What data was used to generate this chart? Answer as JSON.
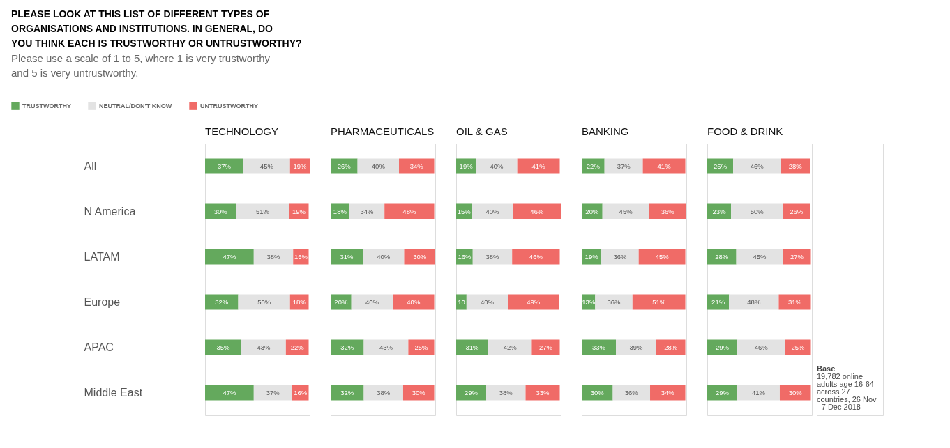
{
  "chart_data": [
    {
      "type": "other",
      "title": "PLEASE LOOK AT THIS LIST OF DIFFERENT TYPES OF ORGANISATIONS AND INSTITUTIONS. IN GENERAL, DO YOU THINK EACH IS TRUSTWORTHY OR UNTRUSTWORTHY?",
      "subtitle": "Please use a scale of 1 to 5, where 1 is very trustworthy and 5 is very untrustworthy."
    },
    {
      "type": "bar",
      "title": "TECHNOLOGY",
      "orientation": "horizontal",
      "stacked": true,
      "legend": "top left",
      "tick_labels": "y",
      "categories": [
        "All",
        "N America",
        "LATAM",
        "Europe",
        "APAC",
        "Middle East"
      ],
      "series": [
        {
          "name": "TRUSTWORTHY",
          "color": "#64a95d",
          "values": [
            37,
            30,
            47,
            32,
            35,
            47
          ],
          "value_labels": [
            "37%",
            "30%",
            "47%",
            "32%",
            "35%",
            "47%"
          ]
        },
        {
          "name": "NEUTRAL/DON'T KNOW",
          "color": "#e3e3e3",
          "values": [
            45,
            51,
            38,
            50,
            43,
            37
          ],
          "value_labels": [
            "45%",
            "51%",
            "38%",
            "50%",
            "43%",
            "37%"
          ]
        },
        {
          "name": "UNTRUSTWORTHY",
          "color": "#f06b67",
          "values": [
            19,
            19,
            15,
            18,
            22,
            16
          ],
          "value_labels": [
            "19%",
            "19%",
            "15%",
            "18%",
            "22%",
            "16%"
          ]
        }
      ]
    },
    {
      "type": "bar",
      "title": "PHARMACEUTICALS",
      "orientation": "horizontal",
      "stacked": true,
      "tick_labels": false,
      "categories": [
        "All",
        "N America",
        "LATAM",
        "Europe",
        "APAC",
        "Middle East"
      ],
      "series": [
        {
          "name": "TRUSTWORTHY",
          "color": "#64a95d",
          "values": [
            26,
            18,
            31,
            20,
            32,
            32
          ],
          "value_labels": [
            "26%",
            "18%",
            "31%",
            "20%",
            "32%",
            "32%"
          ]
        },
        {
          "name": "NEUTRAL/DON'T KNOW",
          "color": "#e3e3e3",
          "values": [
            40,
            34,
            40,
            40,
            43,
            38
          ],
          "value_labels": [
            "40%",
            "34%",
            "40%",
            "40%",
            "43%",
            "38%"
          ]
        },
        {
          "name": "UNTRUSTWORTHY",
          "color": "#f06b67",
          "values": [
            34,
            48,
            30,
            40,
            25,
            30
          ],
          "value_labels": [
            "34%",
            "48%",
            "30%",
            "40%",
            "25%",
            "30%"
          ]
        }
      ]
    },
    {
      "type": "bar",
      "title": "OIL & GAS",
      "orientation": "horizontal",
      "stacked": true,
      "tick_labels": false,
      "categories": [
        "All",
        "N America",
        "LATAM",
        "Europe",
        "APAC",
        "Middle East"
      ],
      "series": [
        {
          "name": "TRUSTWORTHY",
          "color": "#64a95d",
          "values": [
            19,
            15,
            16,
            10,
            31,
            29
          ],
          "value_labels": [
            "19%",
            "15%",
            "16%",
            "10",
            "31%",
            "29%"
          ]
        },
        {
          "name": "NEUTRAL/DON'T KNOW",
          "color": "#e3e3e3",
          "values": [
            40,
            40,
            38,
            40,
            42,
            38
          ],
          "value_labels": [
            "40%",
            "40%",
            "38%",
            "40%",
            "42%",
            "38%"
          ]
        },
        {
          "name": "UNTRUSTWORTHY",
          "color": "#f06b67",
          "values": [
            41,
            46,
            46,
            49,
            27,
            33
          ],
          "value_labels": [
            "41%",
            "46%",
            "46%",
            "49%",
            "27%",
            "33%"
          ]
        }
      ]
    },
    {
      "type": "bar",
      "title": "BANKING",
      "orientation": "horizontal",
      "stacked": true,
      "tick_labels": false,
      "categories": [
        "All",
        "N America",
        "LATAM",
        "Europe",
        "APAC",
        "Middle East"
      ],
      "series": [
        {
          "name": "TRUSTWORTHY",
          "color": "#64a95d",
          "values": [
            22,
            20,
            19,
            13,
            33,
            30
          ],
          "value_labels": [
            "22%",
            "20%",
            "19%",
            "13%",
            "33%",
            "30%"
          ]
        },
        {
          "name": "NEUTRAL/DON'T KNOW",
          "color": "#e3e3e3",
          "values": [
            37,
            45,
            36,
            36,
            39,
            36
          ],
          "value_labels": [
            "37%",
            "45%",
            "36%",
            "36%",
            "39%",
            "36%"
          ]
        },
        {
          "name": "UNTRUSTWORTHY",
          "color": "#f06b67",
          "values": [
            41,
            36,
            45,
            51,
            28,
            34
          ],
          "value_labels": [
            "41%",
            "36%",
            "45%",
            "51%",
            "28%",
            "34%"
          ]
        }
      ]
    },
    {
      "type": "bar",
      "title": "FOOD & DRINK",
      "orientation": "horizontal",
      "stacked": true,
      "tick_labels": false,
      "categories": [
        "All",
        "N America",
        "LATAM",
        "Europe",
        "APAC",
        "Middle East"
      ],
      "series": [
        {
          "name": "TRUSTWORTHY",
          "color": "#64a95d",
          "values": [
            25,
            23,
            28,
            21,
            29,
            29
          ],
          "value_labels": [
            "25%",
            "23%",
            "28%",
            "21%",
            "29%",
            "29%"
          ]
        },
        {
          "name": "NEUTRAL/DON'T KNOW",
          "color": "#e3e3e3",
          "values": [
            46,
            50,
            45,
            48,
            46,
            41
          ],
          "value_labels": [
            "46%",
            "50%",
            "45%",
            "48%",
            "46%",
            "41%"
          ]
        },
        {
          "name": "UNTRUSTWORTHY",
          "color": "#f06b67",
          "values": [
            28,
            26,
            27,
            31,
            25,
            30
          ],
          "value_labels": [
            "28%",
            "26%",
            "27%",
            "31%",
            "25%",
            "30%"
          ]
        }
      ]
    },
    {
      "type": "other",
      "annotations": [
        "Base",
        "19,782 online adults age 16-64 across 27 countries, 26 Nov - 7 Dec 2018"
      ]
    }
  ]
}
